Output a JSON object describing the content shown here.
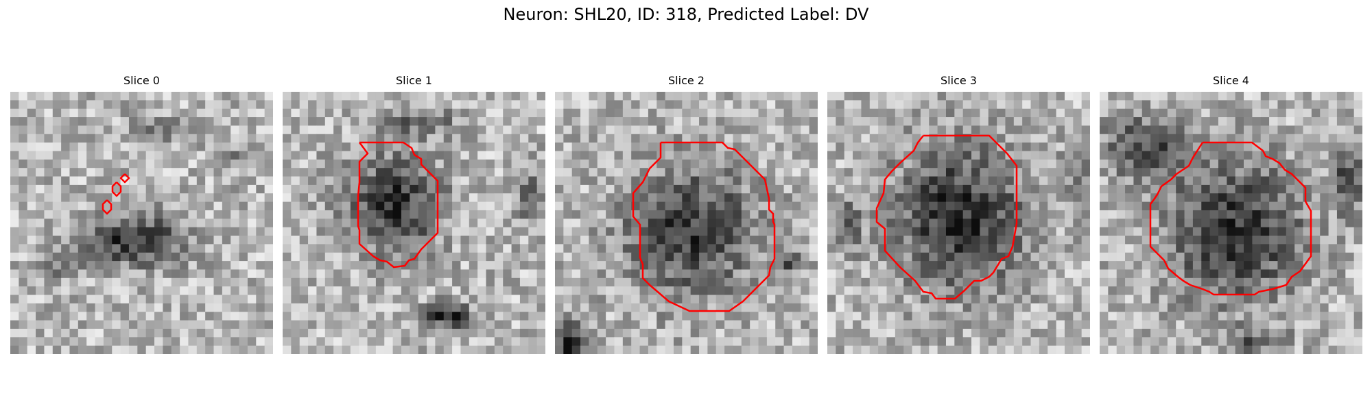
{
  "figure": {
    "title": "Neuron: SHL20, ID: 318, Predicted Label: DV"
  },
  "panels": [
    {
      "title": "Slice 0"
    },
    {
      "title": "Slice 1"
    },
    {
      "title": "Slice 2"
    },
    {
      "title": "Slice 3"
    },
    {
      "title": "Slice 4"
    }
  ],
  "colors": {
    "contour": "#ff0000",
    "background": "#ffffff"
  }
}
